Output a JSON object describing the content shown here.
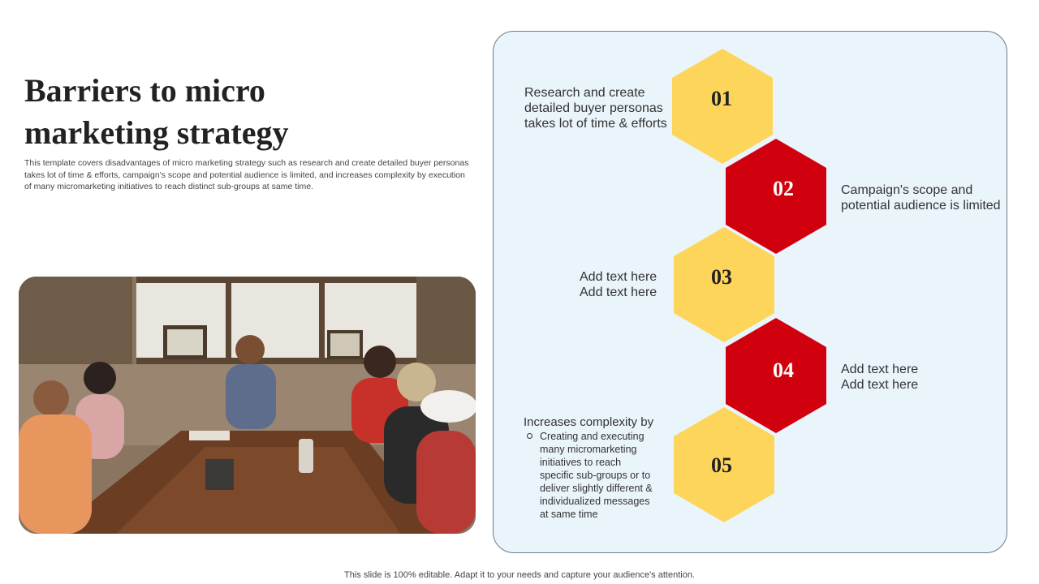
{
  "slide": {
    "title_line1": "Barriers to micro",
    "title_line2": "marketing strategy",
    "description": "This template covers disadvantages of micro marketing strategy such as research and create detailed buyer personas takes lot of time & efforts, campaign's scope and potential audience is limited, and increases complexity by execution of many micromarketing initiatives to reach distinct sub-groups at same time."
  },
  "steps": [
    {
      "number": "01",
      "color": "#FDD55A",
      "text_lines": [
        "Research and create",
        "detailed buyer personas",
        "takes lot of time & efforts"
      ]
    },
    {
      "number": "02",
      "color": "#D1000F",
      "text_lines": [
        "Campaign's scope and",
        "potential audience is limited"
      ]
    },
    {
      "number": "03",
      "color": "#FDD55A",
      "text_lines": [
        "Add text here",
        "Add text here"
      ]
    },
    {
      "number": "04",
      "color": "#D1000F",
      "text_lines": [
        "Add text here",
        "Add text here"
      ]
    },
    {
      "number": "05",
      "color": "#FDD55A",
      "heading": "Increases complexity by",
      "body": "Creating and executing\nmany micromarketing\ninitiatives to reach\nspecific sub-groups or to\ndeliver slightly different &\nindividualized messages\nat same time"
    }
  ],
  "colors": {
    "yellow": "#FDD55A",
    "red": "#D1000F",
    "panel_bg": "#EAF4FB"
  },
  "footer": "This slide is 100% editable. Adapt it to your needs and capture your audience's attention."
}
